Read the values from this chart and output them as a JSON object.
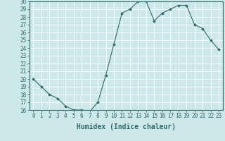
{
  "title": "",
  "xlabel": "Humidex (Indice chaleur)",
  "ylabel": "",
  "x": [
    0,
    1,
    2,
    3,
    4,
    5,
    6,
    7,
    8,
    9,
    10,
    11,
    12,
    13,
    14,
    15,
    16,
    17,
    18,
    19,
    20,
    21,
    22,
    23
  ],
  "y": [
    20,
    19,
    18,
    17.5,
    16.5,
    16,
    16,
    15.8,
    17,
    20.5,
    24.5,
    28.5,
    29,
    30,
    30,
    27.5,
    28.5,
    29,
    29.5,
    29.5,
    27,
    26.5,
    25,
    23.8
  ],
  "line_color": "#2e6b6b",
  "marker": "D",
  "marker_size": 2.0,
  "bg_color": "#cce8e8",
  "grid_color": "#ffffff",
  "ylim": [
    16,
    30
  ],
  "xlim": [
    -0.5,
    23.5
  ],
  "yticks": [
    16,
    17,
    18,
    19,
    20,
    21,
    22,
    23,
    24,
    25,
    26,
    27,
    28,
    29,
    30
  ],
  "xticks": [
    0,
    1,
    2,
    3,
    4,
    5,
    6,
    7,
    8,
    9,
    10,
    11,
    12,
    13,
    14,
    15,
    16,
    17,
    18,
    19,
    20,
    21,
    22,
    23
  ],
  "tick_fontsize": 5.5,
  "xlabel_fontsize": 7,
  "axis_color": "#2e6b6b",
  "spine_color": "#2e6b6b"
}
